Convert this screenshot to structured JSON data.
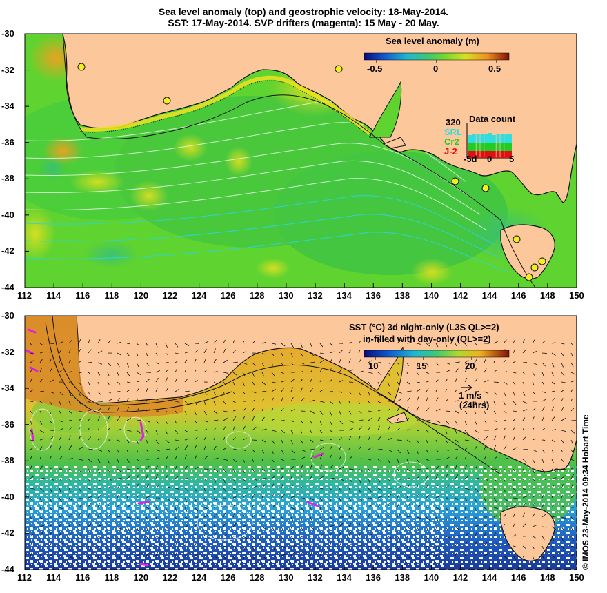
{
  "title": {
    "line1": "Sea level anomaly (top) and geostrophic velocity: 18-May-2014.",
    "line2": "SST: 17-May-2014. SVP drifters (magenta): 15 May - 20 May."
  },
  "x_ticks": [
    "112",
    "114",
    "116",
    "118",
    "120",
    "122",
    "124",
    "126",
    "128",
    "130",
    "132",
    "134",
    "136",
    "138",
    "140",
    "142",
    "144",
    "146",
    "148",
    "150"
  ],
  "y_ticks": [
    "-30",
    "-32",
    "-34",
    "-36",
    "-38",
    "-40",
    "-42",
    "-44"
  ],
  "colors": {
    "land": "#fcc89b",
    "ocean_sla": "#5fd330",
    "sst_warm": "#e89a2a",
    "sst_mid": "#9fd03a",
    "sst_cool": "#2aa0d8",
    "sst_cold": "#1a3a9a",
    "drifter": "#e020e0"
  },
  "top_panel": {
    "colorbar": {
      "title": "Sea level anomaly (m)",
      "labels": [
        "-0.5",
        "0",
        "0.5"
      ]
    },
    "data_count": {
      "title": "Data count",
      "max": "320",
      "missions": [
        "SRL",
        "Cr2",
        "J-2"
      ],
      "mission_colors": [
        "#33dddd",
        "#22cc22",
        "#dd1111"
      ],
      "x_labels": [
        "-5d",
        "0",
        "5"
      ]
    }
  },
  "bottom_panel": {
    "colorbar": {
      "title_line1": "SST (°C)  3d night-only (L3S QL>=2)",
      "title_line2": "in-filled with day-only (QL>=2)",
      "labels": [
        "10",
        "15",
        "20"
      ]
    },
    "velocity_scale": {
      "label": "1 m/s",
      "sublabel": "(24hrs)"
    }
  },
  "credit": "© IMOS 23-May-2014 09:34 Hobart Time"
}
